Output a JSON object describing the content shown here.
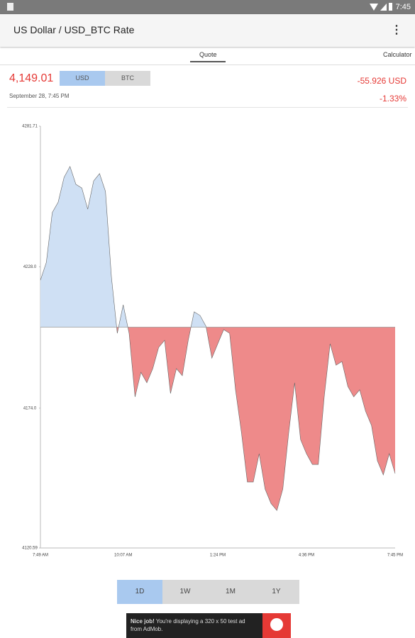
{
  "status_bar": {
    "time": "7:45"
  },
  "app_bar": {
    "title": "US Dollar / USD_BTC Rate"
  },
  "tabs": [
    "Quote",
    "Calculator"
  ],
  "quote": {
    "price": "4,149.01",
    "currencies": [
      "USD",
      "BTC"
    ],
    "date": "September 28, 7:45 PM",
    "change": "-55.926 USD",
    "change_percent": "-1.33%"
  },
  "ranges": [
    "1D",
    "1W",
    "1M",
    "1Y"
  ],
  "ad": {
    "bold": "Nice job!",
    "text": "You're displaying a 320 x 50 test ad from AdMob."
  },
  "chart_data": {
    "type": "area",
    "categories": [
      "7:49 AM",
      null,
      null,
      null,
      null,
      null,
      null,
      null,
      null,
      null,
      null,
      null,
      null,
      null,
      "10:07 AM",
      null,
      null,
      null,
      null,
      null,
      null,
      null,
      null,
      null,
      null,
      null,
      null,
      null,
      null,
      null,
      "1:24 PM",
      null,
      null,
      null,
      null,
      null,
      null,
      null,
      null,
      null,
      null,
      null,
      null,
      null,
      null,
      "4:36 PM",
      null,
      null,
      null,
      null,
      null,
      null,
      null,
      null,
      null,
      null,
      null,
      null,
      null,
      null,
      "7:45 PM"
    ],
    "values": [
      4222.9,
      4229.7,
      4248.7,
      4252.7,
      4262.2,
      4266.3,
      4259.5,
      4258.1,
      4250.0,
      4260.8,
      4263.6,
      4256.8,
      4224.3,
      4202.6,
      4213.5,
      4202.6,
      4178.3,
      4187.7,
      4183.7,
      4189.1,
      4197.2,
      4199.9,
      4179.6,
      4189.1,
      4186.4,
      4199.9,
      4210.8,
      4209.4,
      4205.3,
      4193.1,
      4198.6,
      4204.0,
      4202.6,
      4181.0,
      4164.7,
      4145.8,
      4145.8,
      4156.6,
      4143.1,
      4137.6,
      4134.9,
      4143.1,
      4164.7,
      4183.7,
      4162.0,
      4156.6,
      4152.5,
      4152.5,
      4178.3,
      4198.6,
      4190.4,
      4191.8,
      4182.3,
      4178.3,
      4181.0,
      4172.8,
      4167.4,
      4153.9,
      4148.5,
      4156.6,
      4149.0
    ],
    "baseline": 4204.94,
    "up_color": "#cfe0f4",
    "down_color": "#ee8a8a",
    "ylim": [
      4120.59,
      4281.71
    ],
    "yticks": [
      4281.71,
      {
        "value": 4228,
        "label": "4228.0"
      },
      {
        "value": 4174,
        "label": "4174.0"
      },
      4120.59
    ]
  }
}
